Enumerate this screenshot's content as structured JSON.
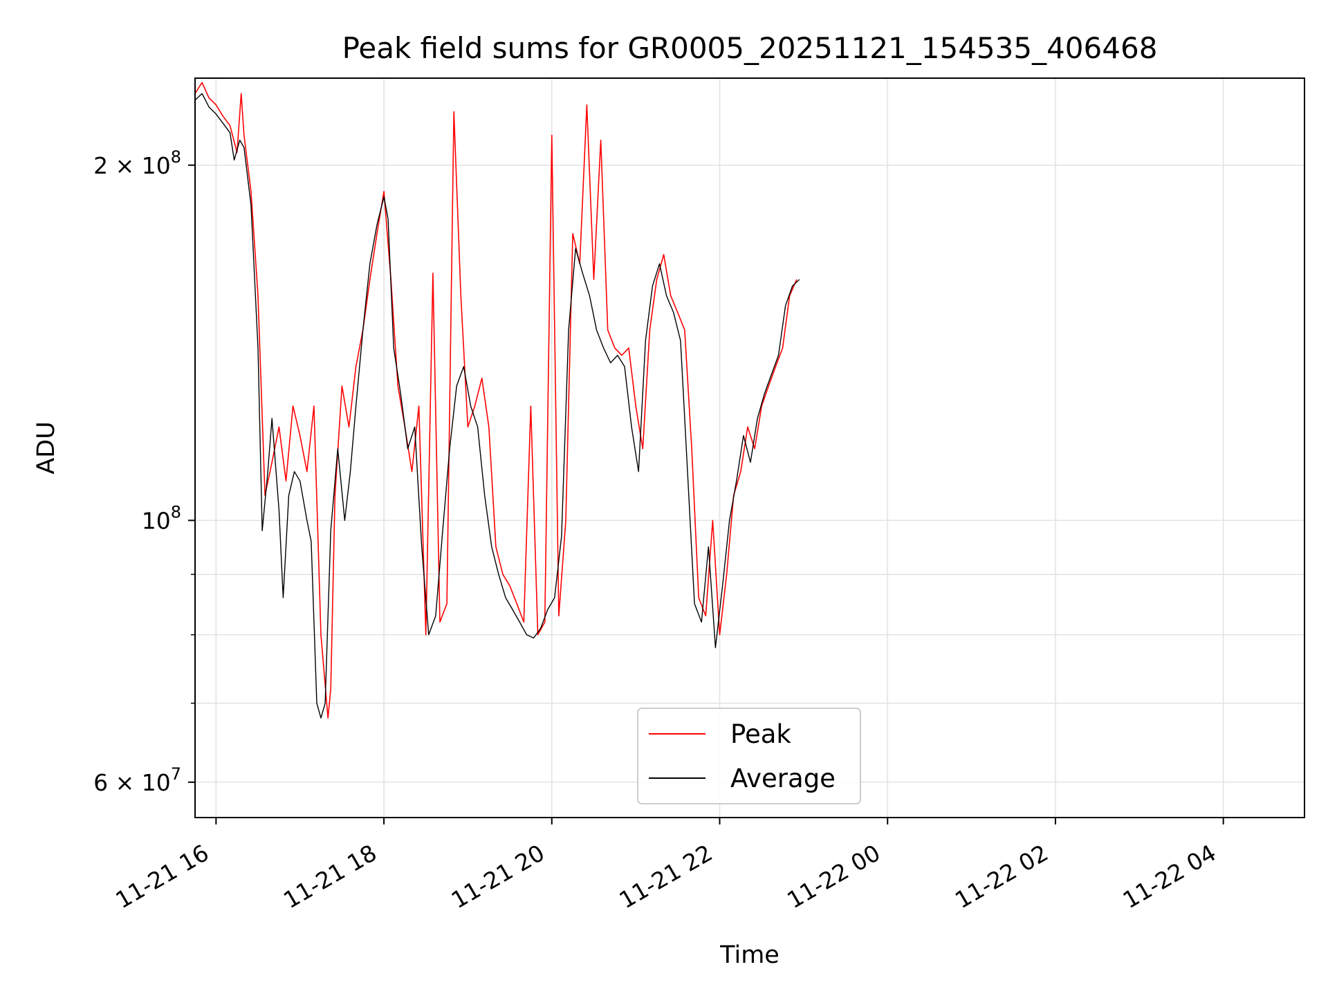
{
  "chart_data": {
    "type": "line",
    "title": "Peak field sums for GR0005_20251121_154535_406468",
    "xlabel": "Time",
    "ylabel": "ADU",
    "yscale": "log",
    "xlim": [
      "2025-11-21 15:45",
      "2025-11-22 04:58"
    ],
    "ylim": [
      56000000,
      237000000
    ],
    "grid": true,
    "legend": "lower center",
    "x_ticks": [
      {
        "t": "2025-11-21 16:00",
        "label": "11-21 16"
      },
      {
        "t": "2025-11-21 18:00",
        "label": "11-21 18"
      },
      {
        "t": "2025-11-21 20:00",
        "label": "11-21 20"
      },
      {
        "t": "2025-11-21 22:00",
        "label": "11-21 22"
      },
      {
        "t": "2025-11-22 00:00",
        "label": "11-22 00"
      },
      {
        "t": "2025-11-22 02:00",
        "label": "11-22 02"
      },
      {
        "t": "2025-11-22 04:00",
        "label": "11-22 04"
      }
    ],
    "y_ticks_major": [
      {
        "v": 60000000,
        "label": "6 × 10",
        "exp": "7"
      },
      {
        "v": 100000000,
        "label": "10",
        "exp": "8"
      },
      {
        "v": 200000000,
        "label": "2 × 10",
        "exp": "8"
      }
    ],
    "y_ticks_minor": [
      70000000,
      80000000,
      90000000
    ],
    "series": [
      {
        "name": "Peak",
        "color": "#ff0000",
        "points": [
          [
            "2025-11-21 15:45",
            230000000.0
          ],
          [
            "2025-11-21 15:50",
            235000000.0
          ],
          [
            "2025-11-21 15:55",
            228000000.0
          ],
          [
            "2025-11-21 16:00",
            225000000.0
          ],
          [
            "2025-11-21 16:05",
            220000000.0
          ],
          [
            "2025-11-21 16:10",
            216000000.0
          ],
          [
            "2025-11-21 16:15",
            205000000.0
          ],
          [
            "2025-11-21 16:18",
            230000000.0
          ],
          [
            "2025-11-21 16:20",
            212000000.0
          ],
          [
            "2025-11-21 16:25",
            190000000.0
          ],
          [
            "2025-11-21 16:30",
            155000000.0
          ],
          [
            "2025-11-21 16:35",
            105000000.0
          ],
          [
            "2025-11-21 16:40",
            112000000.0
          ],
          [
            "2025-11-21 16:45",
            120000000.0
          ],
          [
            "2025-11-21 16:50",
            108000000.0
          ],
          [
            "2025-11-21 16:55",
            125000000.0
          ],
          [
            "2025-11-21 17:00",
            118000000.0
          ],
          [
            "2025-11-21 17:05",
            110000000.0
          ],
          [
            "2025-11-21 17:10",
            125000000.0
          ],
          [
            "2025-11-21 17:15",
            80000000.0
          ],
          [
            "2025-11-21 17:20",
            68000000.0
          ],
          [
            "2025-11-21 17:22",
            72000000.0
          ],
          [
            "2025-11-21 17:25",
            105000000.0
          ],
          [
            "2025-11-21 17:30",
            130000000.0
          ],
          [
            "2025-11-21 17:35",
            120000000.0
          ],
          [
            "2025-11-21 17:40",
            135000000.0
          ],
          [
            "2025-11-21 17:45",
            145000000.0
          ],
          [
            "2025-11-21 17:50",
            160000000.0
          ],
          [
            "2025-11-21 17:55",
            175000000.0
          ],
          [
            "2025-11-21 18:00",
            190000000.0
          ],
          [
            "2025-11-21 18:05",
            160000000.0
          ],
          [
            "2025-11-21 18:10",
            130000000.0
          ],
          [
            "2025-11-21 18:15",
            120000000.0
          ],
          [
            "2025-11-21 18:20",
            110000000.0
          ],
          [
            "2025-11-21 18:25",
            125000000.0
          ],
          [
            "2025-11-21 18:30",
            80000000.0
          ],
          [
            "2025-11-21 18:35",
            162000000.0
          ],
          [
            "2025-11-21 18:40",
            82000000.0
          ],
          [
            "2025-11-21 18:45",
            85000000.0
          ],
          [
            "2025-11-21 18:50",
            222000000.0
          ],
          [
            "2025-11-21 18:55",
            155000000.0
          ],
          [
            "2025-11-21 19:00",
            120000000.0
          ],
          [
            "2025-11-21 19:05",
            125000000.0
          ],
          [
            "2025-11-21 19:10",
            132000000.0
          ],
          [
            "2025-11-21 19:15",
            120000000.0
          ],
          [
            "2025-11-21 19:20",
            95000000.0
          ],
          [
            "2025-11-21 19:25",
            90000000.0
          ],
          [
            "2025-11-21 19:30",
            88000000.0
          ],
          [
            "2025-11-21 19:35",
            85000000.0
          ],
          [
            "2025-11-21 19:40",
            82000000.0
          ],
          [
            "2025-11-21 19:45",
            125000000.0
          ],
          [
            "2025-11-21 19:50",
            80000000.0
          ],
          [
            "2025-11-21 19:55",
            82000000.0
          ],
          [
            "2025-11-21 20:00",
            212000000.0
          ],
          [
            "2025-11-21 20:05",
            83000000.0
          ],
          [
            "2025-11-21 20:10",
            100000000.0
          ],
          [
            "2025-11-21 20:15",
            175000000.0
          ],
          [
            "2025-11-21 20:20",
            165000000.0
          ],
          [
            "2025-11-21 20:25",
            225000000.0
          ],
          [
            "2025-11-21 20:30",
            160000000.0
          ],
          [
            "2025-11-21 20:35",
            210000000.0
          ],
          [
            "2025-11-21 20:40",
            145000000.0
          ],
          [
            "2025-11-21 20:45",
            140000000.0
          ],
          [
            "2025-11-21 20:50",
            138000000.0
          ],
          [
            "2025-11-21 20:55",
            140000000.0
          ],
          [
            "2025-11-21 21:00",
            125000000.0
          ],
          [
            "2025-11-21 21:05",
            115000000.0
          ],
          [
            "2025-11-21 21:10",
            145000000.0
          ],
          [
            "2025-11-21 21:15",
            160000000.0
          ],
          [
            "2025-11-21 21:20",
            168000000.0
          ],
          [
            "2025-11-21 21:25",
            155000000.0
          ],
          [
            "2025-11-21 21:30",
            150000000.0
          ],
          [
            "2025-11-21 21:35",
            145000000.0
          ],
          [
            "2025-11-21 21:40",
            115000000.0
          ],
          [
            "2025-11-21 21:45",
            86000000.0
          ],
          [
            "2025-11-21 21:50",
            83000000.0
          ],
          [
            "2025-11-21 21:55",
            100000000.0
          ],
          [
            "2025-11-21 22:00",
            80000000.0
          ],
          [
            "2025-11-21 22:05",
            90000000.0
          ],
          [
            "2025-11-21 22:10",
            105000000.0
          ],
          [
            "2025-11-21 22:15",
            110000000.0
          ],
          [
            "2025-11-21 22:20",
            120000000.0
          ],
          [
            "2025-11-21 22:25",
            115000000.0
          ],
          [
            "2025-11-21 22:30",
            125000000.0
          ],
          [
            "2025-11-21 22:35",
            130000000.0
          ],
          [
            "2025-11-21 22:40",
            135000000.0
          ],
          [
            "2025-11-21 22:45",
            140000000.0
          ],
          [
            "2025-11-21 22:50",
            155000000.0
          ],
          [
            "2025-11-21 22:55",
            160000000.0
          ]
        ]
      },
      {
        "name": "Average",
        "color": "#000000",
        "points": [
          [
            "2025-11-21 15:45",
            227000000.0
          ],
          [
            "2025-11-21 15:50",
            230000000.0
          ],
          [
            "2025-11-21 15:55",
            224000000.0
          ],
          [
            "2025-11-21 16:00",
            221000000.0
          ],
          [
            "2025-11-21 16:05",
            217000000.0
          ],
          [
            "2025-11-21 16:10",
            213000000.0
          ],
          [
            "2025-11-21 16:13",
            202000000.0
          ],
          [
            "2025-11-21 16:17",
            210000000.0
          ],
          [
            "2025-11-21 16:20",
            207000000.0
          ],
          [
            "2025-11-21 16:25",
            185000000.0
          ],
          [
            "2025-11-21 16:30",
            140000000.0
          ],
          [
            "2025-11-21 16:33",
            98000000.0
          ],
          [
            "2025-11-21 16:37",
            110000000.0
          ],
          [
            "2025-11-21 16:40",
            122000000.0
          ],
          [
            "2025-11-21 16:45",
            102000000.0
          ],
          [
            "2025-11-21 16:48",
            86000000.0
          ],
          [
            "2025-11-21 16:52",
            105000000.0
          ],
          [
            "2025-11-21 16:56",
            110000000.0
          ],
          [
            "2025-11-21 17:00",
            108000000.0
          ],
          [
            "2025-11-21 17:05",
            100000000.0
          ],
          [
            "2025-11-21 17:08",
            96000000.0
          ],
          [
            "2025-11-21 17:12",
            70000000.0
          ],
          [
            "2025-11-21 17:15",
            68000000.0
          ],
          [
            "2025-11-21 17:18",
            70000000.0
          ],
          [
            "2025-11-21 17:22",
            98000000.0
          ],
          [
            "2025-11-21 17:27",
            115000000.0
          ],
          [
            "2025-11-21 17:32",
            100000000.0
          ],
          [
            "2025-11-21 17:36",
            110000000.0
          ],
          [
            "2025-11-21 17:40",
            125000000.0
          ],
          [
            "2025-11-21 17:45",
            145000000.0
          ],
          [
            "2025-11-21 17:50",
            165000000.0
          ],
          [
            "2025-11-21 17:55",
            178000000.0
          ],
          [
            "2025-11-21 18:00",
            188000000.0
          ],
          [
            "2025-11-21 18:03",
            180000000.0
          ],
          [
            "2025-11-21 18:07",
            140000000.0
          ],
          [
            "2025-11-21 18:12",
            128000000.0
          ],
          [
            "2025-11-21 18:17",
            115000000.0
          ],
          [
            "2025-11-21 18:22",
            120000000.0
          ],
          [
            "2025-11-21 18:27",
            95000000.0
          ],
          [
            "2025-11-21 18:32",
            80000000.0
          ],
          [
            "2025-11-21 18:37",
            83000000.0
          ],
          [
            "2025-11-21 18:42",
            98000000.0
          ],
          [
            "2025-11-21 18:47",
            115000000.0
          ],
          [
            "2025-11-21 18:52",
            130000000.0
          ],
          [
            "2025-11-21 18:57",
            135000000.0
          ],
          [
            "2025-11-21 19:02",
            125000000.0
          ],
          [
            "2025-11-21 19:07",
            120000000.0
          ],
          [
            "2025-11-21 19:12",
            105000000.0
          ],
          [
            "2025-11-21 19:17",
            95000000.0
          ],
          [
            "2025-11-21 19:22",
            90000000.0
          ],
          [
            "2025-11-21 19:27",
            86000000.0
          ],
          [
            "2025-11-21 19:32",
            84000000.0
          ],
          [
            "2025-11-21 19:37",
            82000000.0
          ],
          [
            "2025-11-21 19:42",
            80000000.0
          ],
          [
            "2025-11-21 19:47",
            79500000.0
          ],
          [
            "2025-11-21 19:52",
            81000000.0
          ],
          [
            "2025-11-21 19:57",
            84000000.0
          ],
          [
            "2025-11-21 20:02",
            86000000.0
          ],
          [
            "2025-11-21 20:07",
            97000000.0
          ],
          [
            "2025-11-21 20:12",
            145000000.0
          ],
          [
            "2025-11-21 20:17",
            170000000.0
          ],
          [
            "2025-11-21 20:22",
            162000000.0
          ],
          [
            "2025-11-21 20:27",
            155000000.0
          ],
          [
            "2025-11-21 20:32",
            145000000.0
          ],
          [
            "2025-11-21 20:37",
            140000000.0
          ],
          [
            "2025-11-21 20:42",
            136000000.0
          ],
          [
            "2025-11-21 20:47",
            138000000.0
          ],
          [
            "2025-11-21 20:52",
            135000000.0
          ],
          [
            "2025-11-21 20:57",
            120000000.0
          ],
          [
            "2025-11-21 21:02",
            110000000.0
          ],
          [
            "2025-11-21 21:07",
            142000000.0
          ],
          [
            "2025-11-21 21:12",
            158000000.0
          ],
          [
            "2025-11-21 21:17",
            165000000.0
          ],
          [
            "2025-11-21 21:22",
            155000000.0
          ],
          [
            "2025-11-21 21:27",
            150000000.0
          ],
          [
            "2025-11-21 21:32",
            142000000.0
          ],
          [
            "2025-11-21 21:37",
            110000000.0
          ],
          [
            "2025-11-21 21:42",
            85000000.0
          ],
          [
            "2025-11-21 21:47",
            82000000.0
          ],
          [
            "2025-11-21 21:52",
            95000000.0
          ],
          [
            "2025-11-21 21:57",
            78000000.0
          ],
          [
            "2025-11-21 22:02",
            88000000.0
          ],
          [
            "2025-11-21 22:07",
            100000000.0
          ],
          [
            "2025-11-21 22:12",
            108000000.0
          ],
          [
            "2025-11-21 22:17",
            118000000.0
          ],
          [
            "2025-11-21 22:22",
            112000000.0
          ],
          [
            "2025-11-21 22:27",
            122000000.0
          ],
          [
            "2025-11-21 22:32",
            128000000.0
          ],
          [
            "2025-11-21 22:37",
            133000000.0
          ],
          [
            "2025-11-21 22:42",
            138000000.0
          ],
          [
            "2025-11-21 22:47",
            152000000.0
          ],
          [
            "2025-11-21 22:52",
            158000000.0
          ],
          [
            "2025-11-21 22:57",
            160000000.0
          ]
        ]
      }
    ]
  }
}
